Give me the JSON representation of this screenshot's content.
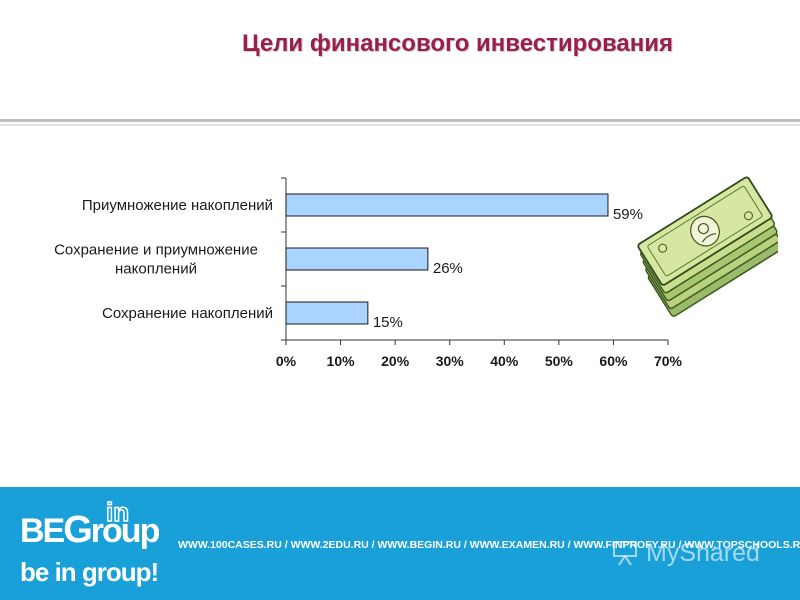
{
  "slide": {
    "title": "Цели финансового инвестирования"
  },
  "chart_data": {
    "type": "bar",
    "orientation": "horizontal",
    "title": "",
    "categories": [
      [
        "Приумножение накоплений"
      ],
      [
        "Сохранение и приумножение",
        "накоплений"
      ],
      [
        "Сохранение накоплений"
      ]
    ],
    "values": [
      59,
      26,
      15
    ],
    "value_labels": [
      "59%",
      "26%",
      "15%"
    ],
    "xlim": [
      0,
      70
    ],
    "x_ticks": [
      0,
      10,
      20,
      30,
      40,
      50,
      60,
      70
    ],
    "x_tick_labels": [
      "0%",
      "10%",
      "20%",
      "30%",
      "40%",
      "50%",
      "60%",
      "70%"
    ],
    "grid": false,
    "bar_fill": "#a9d4ff",
    "bar_stroke": "#1a1a1a"
  },
  "decoration": {
    "illustration": "money-stack-icon"
  },
  "footer": {
    "background": "#1aa0d8",
    "logo_word_prefix": "BE",
    "logo_word_g": "G",
    "logo_word_suffix": "roup",
    "logo_in": "in",
    "slogan": "be in group!",
    "links": "WWW.100CASES.RU  /  WWW.2EDU.RU  /  WWW.BEGIN.RU  /  WWW.EXAMEN.RU  /  WWW.FINPROFY.RU  /  WWW.TOPSCHOOLS.RU",
    "watermark": "MyShared"
  }
}
